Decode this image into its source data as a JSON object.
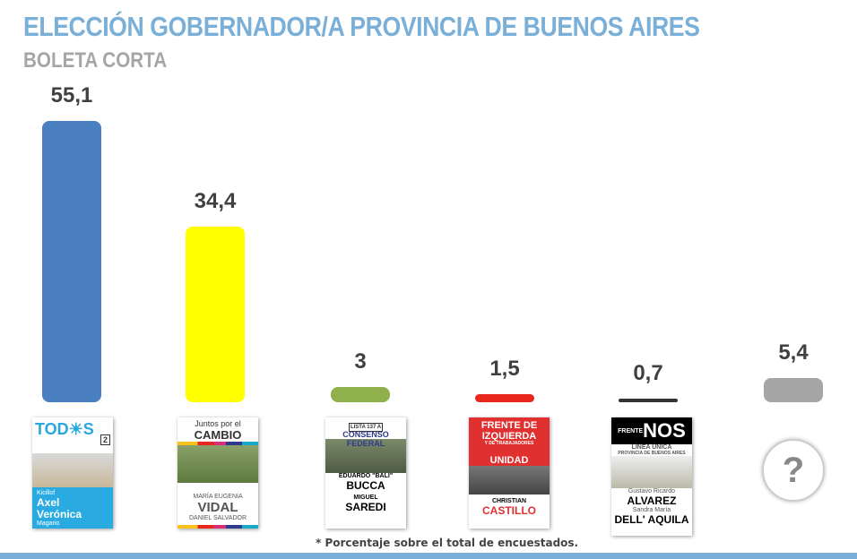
{
  "title": "ELECCIÓN GOBERNADOR/A PROVINCIA DE BUENOS AIRES",
  "subtitle": "BOLETA CORTA",
  "note": "* Porcentaje sobre el total de encuestados.",
  "chart_data": {
    "type": "bar",
    "title": "ELECCIÓN GOBERNADOR/A PROVINCIA DE BUENOS AIRES",
    "subtitle": "BOLETA CORTA",
    "categories": [
      "Frente de Todos (Kicillof - Magario)",
      "Juntos por el Cambio (Vidal - Salvador)",
      "Consenso Federal (Bucca - Saredi)",
      "Frente de Izquierda (Castillo)",
      "Frente NOS (Alvarez - Dell' Aquila)",
      "?"
    ],
    "values": [
      55.1,
      34.4,
      3,
      1.5,
      0.7,
      5.4
    ],
    "value_labels": [
      "55,1",
      "34,4",
      "3",
      "1,5",
      "0,7",
      "5,4"
    ],
    "colors": [
      "#4a7fc1",
      "#ffff00",
      "#8fb04a",
      "#e8261c",
      "#333333",
      "#a6a6a6"
    ],
    "grid": false,
    "legend": "none"
  },
  "ballots": [
    {
      "party": "TOD☀S",
      "list": "2",
      "line1": "Kicillof",
      "line2": "Axel",
      "line3": "Verónica",
      "line4": "Magario"
    },
    {
      "party1": "Juntos por el",
      "party2": "CAMBIO",
      "line1": "MARÍA EUGENIA",
      "line2": "VIDAL",
      "line3": "DANIEL SALVADOR"
    },
    {
      "list": "LISTA 137 A",
      "party": "CONSENSO FEDERAL",
      "line1": "EDUARDO \"BALI\"",
      "line2": "BUCCA",
      "line3": "MIGUEL",
      "line4": "SAREDI"
    },
    {
      "party1": "FRENTE DE",
      "party2": "IZQUIERDA",
      "party3": "Y DE TRABAJADORES",
      "party4": "UNIDAD",
      "line1": "CHRISTIAN",
      "line2": "CASTILLO"
    },
    {
      "party": "NOS",
      "prefix": "FRENTE",
      "sub1": "LÍNEA ÚNICA",
      "sub2": "PROVINCIA DE BUENOS AIRES",
      "line1": "Gustavo Ricardo",
      "line2": "ALVAREZ",
      "line3": "Sandra María",
      "line4": "DELL' AQUILA"
    },
    {
      "symbol": "?"
    }
  ]
}
